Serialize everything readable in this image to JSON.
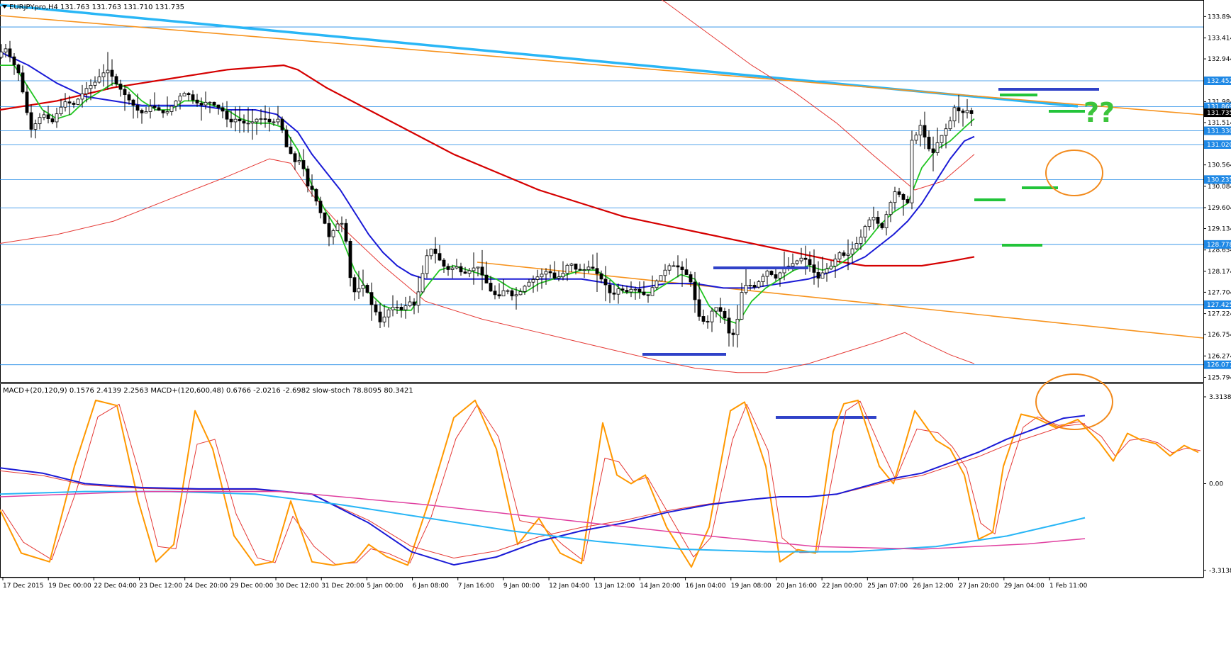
{
  "chart_data": {
    "type": "candlestick",
    "symbol_header": "EURJPYpro,H4  131.763 131.763 131.710 131.735",
    "current_price": "131.735",
    "price_axis_ticks": [
      "133.894",
      "133.414",
      "132.944",
      "131.984",
      "131.514",
      "130.564",
      "130.084",
      "129.604",
      "129.134",
      "128.654",
      "128.174",
      "127.704",
      "127.224",
      "126.754",
      "126.274",
      "125.794"
    ],
    "price_range": [
      125.69,
      134.25
    ],
    "level_tags": [
      "132.452",
      "131.869",
      "131.330",
      "131.020",
      "130.235",
      "128.778",
      "127.425",
      "126.077"
    ],
    "other_levels": [
      133.66,
      129.6
    ],
    "time_labels": [
      "17 Dec 2015",
      "19 Dec 00:00",
      "22 Dec 04:00",
      "23 Dec 12:00",
      "24 Dec 20:00",
      "29 Dec 00:00",
      "30 Dec 12:00",
      "31 Dec 20:00",
      "5 Jan 00:00",
      "6 Jan 08:00",
      "7 Jan 16:00",
      "9 Jan 00:00",
      "12 Jan 04:00",
      "13 Jan 12:00",
      "14 Jan 20:00",
      "16 Jan 04:00",
      "19 Jan 08:00",
      "20 Jan 16:00",
      "22 Jan 00:00",
      "25 Jan 07:00",
      "26 Jan 12:00",
      "27 Jan 20:00",
      "29 Jan 04:00",
      "1 Feb 11:00"
    ],
    "annotation": "??",
    "price_path": [
      [
        0,
        133.0
      ],
      [
        10,
        133.2
      ],
      [
        20,
        132.9
      ],
      [
        30,
        132.6
      ],
      [
        40,
        131.8
      ],
      [
        48,
        131.3
      ],
      [
        56,
        131.6
      ],
      [
        66,
        131.7
      ],
      [
        76,
        131.5
      ],
      [
        86,
        131.8
      ],
      [
        96,
        132.0
      ],
      [
        106,
        131.9
      ],
      [
        116,
        132.1
      ],
      [
        126,
        132.3
      ],
      [
        136,
        132.4
      ],
      [
        146,
        132.6
      ],
      [
        156,
        132.7
      ],
      [
        166,
        132.4
      ],
      [
        176,
        132.2
      ],
      [
        186,
        132.0
      ],
      [
        196,
        131.8
      ],
      [
        206,
        131.7
      ],
      [
        216,
        131.9
      ],
      [
        226,
        131.8
      ],
      [
        236,
        131.7
      ],
      [
        246,
        131.9
      ],
      [
        256,
        132.1
      ],
      [
        266,
        132.2
      ],
      [
        276,
        132.0
      ],
      [
        286,
        131.9
      ],
      [
        296,
        132.0
      ],
      [
        306,
        131.9
      ],
      [
        316,
        131.8
      ],
      [
        326,
        131.5
      ],
      [
        336,
        131.6
      ],
      [
        346,
        131.5
      ],
      [
        356,
        131.5
      ],
      [
        366,
        131.6
      ],
      [
        376,
        131.6
      ],
      [
        386,
        131.5
      ],
      [
        396,
        131.6
      ],
      [
        402,
        131.3
      ],
      [
        408,
        130.9
      ],
      [
        414,
        130.8
      ],
      [
        420,
        130.6
      ],
      [
        428,
        130.7
      ],
      [
        436,
        130.1
      ],
      [
        444,
        130.0
      ],
      [
        452,
        129.6
      ],
      [
        460,
        129.3
      ],
      [
        468,
        128.9
      ],
      [
        476,
        129.2
      ],
      [
        484,
        129.3
      ],
      [
        490,
        129.0
      ],
      [
        496,
        128.1
      ],
      [
        502,
        127.7
      ],
      [
        510,
        127.8
      ],
      [
        518,
        127.9
      ],
      [
        524,
        127.5
      ],
      [
        532,
        127.3
      ],
      [
        540,
        127.0
      ],
      [
        550,
        127.3
      ],
      [
        560,
        127.4
      ],
      [
        570,
        127.3
      ],
      [
        580,
        127.5
      ],
      [
        588,
        127.4
      ],
      [
        596,
        127.9
      ],
      [
        604,
        128.5
      ],
      [
        612,
        128.7
      ],
      [
        620,
        128.5
      ],
      [
        628,
        128.3
      ],
      [
        636,
        128.2
      ],
      [
        646,
        128.3
      ],
      [
        656,
        128.1
      ],
      [
        666,
        128.2
      ],
      [
        676,
        128.3
      ],
      [
        686,
        128.0
      ],
      [
        696,
        127.7
      ],
      [
        706,
        127.6
      ],
      [
        716,
        127.8
      ],
      [
        726,
        127.6
      ],
      [
        736,
        127.7
      ],
      [
        746,
        127.9
      ],
      [
        756,
        128.0
      ],
      [
        766,
        128.1
      ],
      [
        776,
        128.2
      ],
      [
        786,
        128.0
      ],
      [
        796,
        128.1
      ],
      [
        806,
        128.4
      ],
      [
        816,
        128.2
      ],
      [
        826,
        128.2
      ],
      [
        836,
        128.3
      ],
      [
        846,
        128.1
      ],
      [
        856,
        127.9
      ],
      [
        866,
        127.6
      ],
      [
        876,
        127.8
      ],
      [
        886,
        127.7
      ],
      [
        896,
        127.8
      ],
      [
        906,
        127.7
      ],
      [
        916,
        127.6
      ],
      [
        926,
        127.9
      ],
      [
        936,
        128.1
      ],
      [
        946,
        128.3
      ],
      [
        956,
        128.3
      ],
      [
        966,
        128.2
      ],
      [
        976,
        128.0
      ],
      [
        982,
        127.6
      ],
      [
        990,
        127.1
      ],
      [
        1000,
        127.0
      ],
      [
        1010,
        127.4
      ],
      [
        1018,
        127.3
      ],
      [
        1026,
        127.1
      ],
      [
        1034,
        126.6
      ],
      [
        1042,
        127.0
      ],
      [
        1050,
        127.8
      ],
      [
        1058,
        127.9
      ],
      [
        1066,
        127.8
      ],
      [
        1076,
        128.0
      ],
      [
        1086,
        128.2
      ],
      [
        1096,
        128.0
      ],
      [
        1106,
        128.2
      ],
      [
        1116,
        128.3
      ],
      [
        1126,
        128.4
      ],
      [
        1136,
        128.5
      ],
      [
        1146,
        128.3
      ],
      [
        1156,
        128.0
      ],
      [
        1166,
        128.2
      ],
      [
        1176,
        128.3
      ],
      [
        1186,
        128.6
      ],
      [
        1196,
        128.5
      ],
      [
        1206,
        128.7
      ],
      [
        1216,
        128.9
      ],
      [
        1226,
        129.3
      ],
      [
        1236,
        129.4
      ],
      [
        1246,
        129.1
      ],
      [
        1256,
        129.6
      ],
      [
        1266,
        130.0
      ],
      [
        1276,
        129.8
      ],
      [
        1284,
        129.7
      ],
      [
        1290,
        131.4
      ],
      [
        1296,
        131.2
      ],
      [
        1302,
        131.5
      ],
      [
        1310,
        131.0
      ],
      [
        1318,
        130.8
      ],
      [
        1326,
        131.1
      ],
      [
        1334,
        131.3
      ],
      [
        1342,
        131.5
      ],
      [
        1350,
        131.9
      ],
      [
        1358,
        131.7
      ],
      [
        1366,
        131.8
      ],
      [
        1374,
        131.7
      ]
    ],
    "ema_green": [
      [
        0,
        132.8
      ],
      [
        20,
        132.8
      ],
      [
        40,
        132.3
      ],
      [
        60,
        131.8
      ],
      [
        80,
        131.6
      ],
      [
        100,
        131.7
      ],
      [
        120,
        132.0
      ],
      [
        140,
        132.2
      ],
      [
        160,
        132.4
      ],
      [
        180,
        132.3
      ],
      [
        200,
        132.0
      ],
      [
        220,
        131.8
      ],
      [
        240,
        131.8
      ],
      [
        260,
        132.0
      ],
      [
        280,
        132.0
      ],
      [
        300,
        131.9
      ],
      [
        320,
        131.8
      ],
      [
        340,
        131.6
      ],
      [
        360,
        131.5
      ],
      [
        380,
        131.5
      ],
      [
        400,
        131.4
      ],
      [
        420,
        130.9
      ],
      [
        440,
        130.1
      ],
      [
        460,
        129.5
      ],
      [
        480,
        129.0
      ],
      [
        500,
        128.2
      ],
      [
        520,
        127.7
      ],
      [
        540,
        127.4
      ],
      [
        560,
        127.3
      ],
      [
        580,
        127.3
      ],
      [
        600,
        127.8
      ],
      [
        620,
        128.2
      ],
      [
        640,
        128.3
      ],
      [
        660,
        128.2
      ],
      [
        680,
        128.1
      ],
      [
        700,
        128.0
      ],
      [
        720,
        127.8
      ],
      [
        740,
        127.7
      ],
      [
        760,
        127.9
      ],
      [
        780,
        128.0
      ],
      [
        800,
        128.1
      ],
      [
        820,
        128.2
      ],
      [
        840,
        128.2
      ],
      [
        860,
        128.0
      ],
      [
        880,
        127.7
      ],
      [
        900,
        127.7
      ],
      [
        920,
        127.7
      ],
      [
        940,
        127.9
      ],
      [
        960,
        128.1
      ],
      [
        980,
        128.0
      ],
      [
        1000,
        127.4
      ],
      [
        1020,
        127.1
      ],
      [
        1040,
        127.0
      ],
      [
        1060,
        127.5
      ],
      [
        1080,
        127.8
      ],
      [
        1100,
        128.0
      ],
      [
        1120,
        128.2
      ],
      [
        1140,
        128.3
      ],
      [
        1160,
        128.2
      ],
      [
        1180,
        128.3
      ],
      [
        1200,
        128.5
      ],
      [
        1220,
        128.8
      ],
      [
        1240,
        129.2
      ],
      [
        1260,
        129.5
      ],
      [
        1280,
        129.7
      ],
      [
        1300,
        130.5
      ],
      [
        1320,
        130.9
      ],
      [
        1340,
        131.1
      ],
      [
        1360,
        131.4
      ],
      [
        1374,
        131.6
      ]
    ],
    "ema_blue": [
      [
        0,
        133.1
      ],
      [
        40,
        132.8
      ],
      [
        80,
        132.4
      ],
      [
        120,
        132.1
      ],
      [
        160,
        132.0
      ],
      [
        200,
        131.9
      ],
      [
        240,
        131.9
      ],
      [
        280,
        131.9
      ],
      [
        320,
        131.8
      ],
      [
        360,
        131.8
      ],
      [
        390,
        131.7
      ],
      [
        420,
        131.3
      ],
      [
        440,
        130.8
      ],
      [
        460,
        130.4
      ],
      [
        480,
        130.0
      ],
      [
        500,
        129.5
      ],
      [
        520,
        129.0
      ],
      [
        540,
        128.6
      ],
      [
        560,
        128.3
      ],
      [
        580,
        128.1
      ],
      [
        600,
        128.0
      ],
      [
        620,
        128.0
      ],
      [
        660,
        128.0
      ],
      [
        700,
        128.0
      ],
      [
        740,
        128.0
      ],
      [
        780,
        128.0
      ],
      [
        820,
        128.0
      ],
      [
        860,
        127.9
      ],
      [
        900,
        127.8
      ],
      [
        940,
        127.9
      ],
      [
        980,
        127.9
      ],
      [
        1020,
        127.8
      ],
      [
        1060,
        127.8
      ],
      [
        1100,
        127.9
      ],
      [
        1140,
        128.0
      ],
      [
        1180,
        128.2
      ],
      [
        1220,
        128.5
      ],
      [
        1260,
        129.0
      ],
      [
        1280,
        129.3
      ],
      [
        1300,
        129.7
      ],
      [
        1320,
        130.2
      ],
      [
        1340,
        130.7
      ],
      [
        1360,
        131.1
      ],
      [
        1374,
        131.2
      ]
    ],
    "sma_red": [
      [
        0,
        131.8
      ],
      [
        80,
        132.0
      ],
      [
        160,
        132.3
      ],
      [
        240,
        132.5
      ],
      [
        320,
        132.7
      ],
      [
        400,
        132.8
      ],
      [
        420,
        132.7
      ],
      [
        460,
        132.3
      ],
      [
        520,
        131.8
      ],
      [
        580,
        131.3
      ],
      [
        640,
        130.8
      ],
      [
        700,
        130.4
      ],
      [
        760,
        130.0
      ],
      [
        820,
        129.7
      ],
      [
        880,
        129.4
      ],
      [
        940,
        129.2
      ],
      [
        1000,
        129.0
      ],
      [
        1060,
        128.8
      ],
      [
        1120,
        128.6
      ],
      [
        1180,
        128.4
      ],
      [
        1220,
        128.3
      ],
      [
        1260,
        128.3
      ],
      [
        1300,
        128.3
      ],
      [
        1340,
        128.4
      ],
      [
        1374,
        128.5
      ]
    ],
    "bb_upper": [
      [
        820,
        135.3
      ],
      [
        880,
        134.8
      ],
      [
        940,
        134.2
      ],
      [
        1000,
        133.5
      ],
      [
        1060,
        132.8
      ],
      [
        1120,
        132.2
      ],
      [
        1180,
        131.5
      ],
      [
        1230,
        130.8
      ],
      [
        1260,
        130.4
      ],
      [
        1290,
        130.0
      ],
      [
        1330,
        130.2
      ],
      [
        1374,
        130.8
      ]
    ],
    "bb_lower": [
      [
        0,
        128.8
      ],
      [
        80,
        129.0
      ],
      [
        160,
        129.3
      ],
      [
        240,
        129.8
      ],
      [
        320,
        130.3
      ],
      [
        380,
        130.7
      ],
      [
        410,
        130.6
      ],
      [
        440,
        129.9
      ],
      [
        480,
        129.2
      ],
      [
        540,
        128.3
      ],
      [
        600,
        127.5
      ],
      [
        680,
        127.1
      ],
      [
        760,
        126.8
      ],
      [
        840,
        126.5
      ],
      [
        920,
        126.2
      ],
      [
        980,
        126.0
      ],
      [
        1040,
        125.9
      ],
      [
        1080,
        125.9
      ],
      [
        1140,
        126.1
      ],
      [
        1200,
        126.4
      ],
      [
        1240,
        126.6
      ],
      [
        1276,
        126.8
      ],
      [
        1300,
        126.6
      ],
      [
        1340,
        126.3
      ],
      [
        1374,
        126.1
      ]
    ],
    "macd_header": "MACD+(20,120,9) 0.1576 2.4139 2.2563  MACD+(120,600,48) 0.6766 -2.0216 -2.6982  slow-stoch 78.8095 80.3421",
    "macd_axis_ticks": [
      "3.3138",
      "0.00",
      "-3.3138"
    ]
  }
}
